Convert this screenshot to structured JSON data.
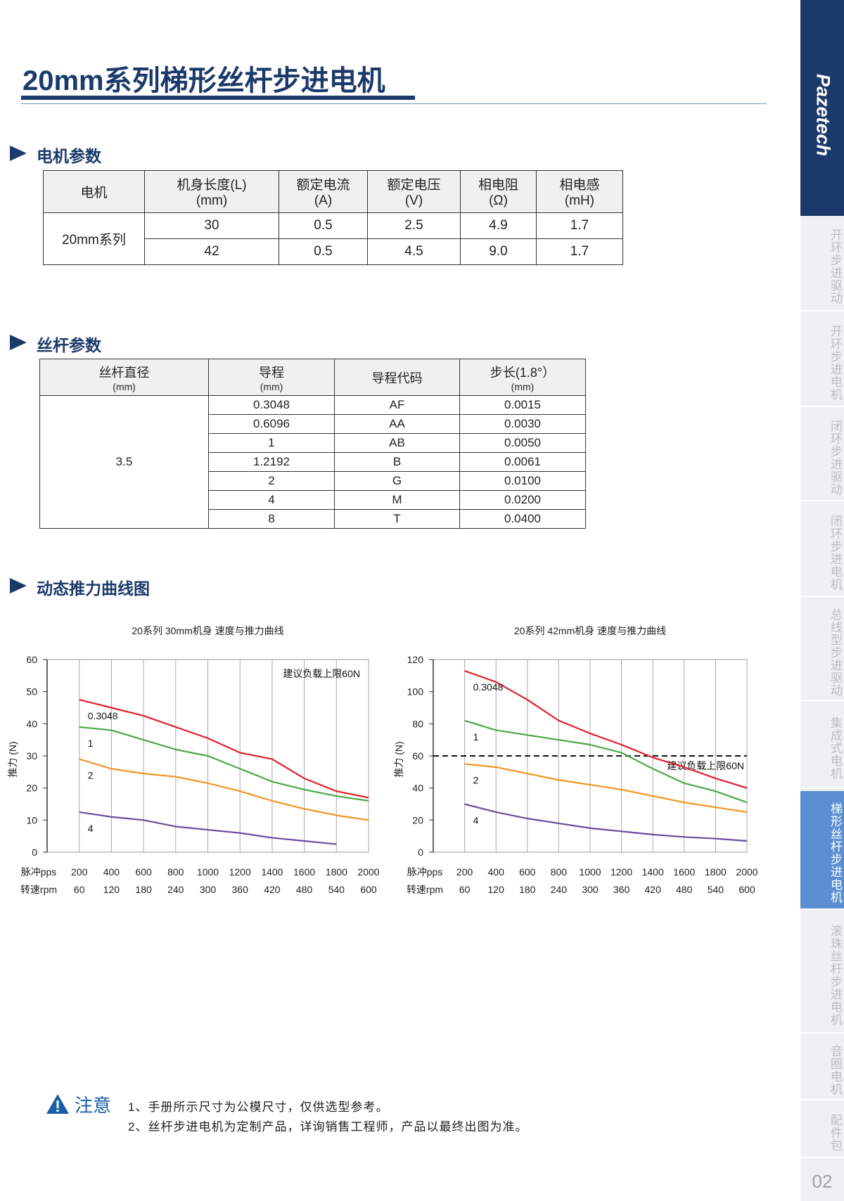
{
  "header": {
    "title": "20mm系列梯形丝杆步进电机"
  },
  "sidebar": {
    "brand": "Pazetech",
    "items": [
      {
        "label": "开环步进驱动"
      },
      {
        "label": "开环步进电机"
      },
      {
        "label": "闭环步进驱动"
      },
      {
        "label": "闭环步进电机"
      },
      {
        "label": "总线型步进驱动"
      },
      {
        "label": "集成式电机"
      },
      {
        "label": "梯形丝杆步进电机",
        "active": true
      },
      {
        "label": "滚珠丝杆步进电机"
      },
      {
        "label": "音圈电机"
      },
      {
        "label": "配件包"
      }
    ]
  },
  "page_number": "02",
  "sections": [
    "电机参数",
    "丝杆参数",
    "动态推力曲线图"
  ],
  "motor_table": {
    "headers": [
      {
        "text": "电机"
      },
      {
        "text": "机身长度(L)",
        "unit": "(mm)"
      },
      {
        "text": "额定电流",
        "unit": "(A)"
      },
      {
        "text": "额定电压",
        "unit": "(V)"
      },
      {
        "text": "相电阻",
        "unit": "(Ω)"
      },
      {
        "text": "相电感",
        "unit": "(mH)"
      }
    ],
    "group": "20mm系列",
    "rows": [
      [
        "30",
        "0.5",
        "2.5",
        "4.9",
        "1.7"
      ],
      [
        "42",
        "0.5",
        "4.5",
        "9.0",
        "1.7"
      ]
    ]
  },
  "screw_table": {
    "headers": [
      {
        "text": "丝杆直径",
        "unit": "(mm)"
      },
      {
        "text": "导程",
        "unit": "(mm)"
      },
      {
        "text": "导程代码"
      },
      {
        "text": "步长(1.8°）",
        "unit": "(mm)"
      }
    ],
    "group": "3.5",
    "rows": [
      [
        "0.3048",
        "AF",
        "0.0015"
      ],
      [
        "0.6096",
        "AA",
        "0.0030"
      ],
      [
        "1",
        "AB",
        "0.0050"
      ],
      [
        "1.2192",
        "B",
        "0.0061"
      ],
      [
        "2",
        "G",
        "0.0100"
      ],
      [
        "4",
        "M",
        "0.0200"
      ],
      [
        "8",
        "T",
        "0.0400"
      ]
    ]
  },
  "chart_data": [
    {
      "type": "line",
      "title": "20系列 30mm机身 速度与推力曲线",
      "y_label": "推力 (N)",
      "x_label": "脉冲pps",
      "x2_label": "转速rpm",
      "annotation": "建议负载上限60N",
      "x": [
        200,
        400,
        600,
        800,
        1000,
        1200,
        1400,
        1600,
        1800,
        2000
      ],
      "xlim": [
        0,
        2000
      ],
      "xticks": [
        200,
        400,
        600,
        800,
        1000,
        1200,
        1400,
        1600,
        1800,
        2000
      ],
      "x2_ticks": [
        60,
        120,
        180,
        240,
        300,
        360,
        420,
        480,
        540,
        600
      ],
      "ylim": [
        0,
        60
      ],
      "yticks": [
        0,
        10,
        20,
        30,
        40,
        50,
        60
      ],
      "grid": true,
      "series": [
        {
          "name": "0.3048",
          "color": "#e0202a",
          "values": [
            47.5,
            45,
            42.5,
            39,
            35.5,
            31,
            29,
            23,
            19,
            17
          ]
        },
        {
          "name": "1",
          "color": "#4aa843",
          "values": [
            39,
            38,
            35,
            32,
            30,
            26,
            22,
            19.5,
            17.5,
            16
          ]
        },
        {
          "name": "2",
          "color": "#f29422",
          "values": [
            29,
            26,
            24.5,
            23.5,
            21.5,
            19,
            16,
            13.5,
            11.5,
            10
          ]
        },
        {
          "name": "4",
          "color": "#6a4c9c",
          "values": [
            12.5,
            11,
            10,
            8,
            7,
            6,
            4.5,
            3.5,
            2.5,
            null
          ]
        }
      ]
    },
    {
      "type": "line",
      "title": "20系列 42mm机身 速度与推力曲线",
      "y_label": "推力 (N)",
      "x_label": "脉冲pps",
      "x2_label": "转速rpm",
      "annotation": "建议负载上限60N",
      "threshold": 60,
      "x": [
        200,
        400,
        600,
        800,
        1000,
        1200,
        1400,
        1600,
        1800,
        2000
      ],
      "xlim": [
        0,
        2000
      ],
      "xticks": [
        200,
        400,
        600,
        800,
        1000,
        1200,
        1400,
        1600,
        1800,
        2000
      ],
      "x2_ticks": [
        60,
        120,
        180,
        240,
        300,
        360,
        420,
        480,
        540,
        600
      ],
      "ylim": [
        0,
        120
      ],
      "yticks": [
        0,
        20,
        40,
        60,
        80,
        100,
        120
      ],
      "grid": true,
      "series": [
        {
          "name": "0.3048",
          "color": "#e0202a",
          "values": [
            113,
            106,
            95,
            82,
            74,
            67,
            59,
            53,
            46,
            40
          ]
        },
        {
          "name": "1",
          "color": "#4aa843",
          "values": [
            82,
            76,
            73,
            70,
            67,
            62,
            52,
            43,
            38,
            31
          ]
        },
        {
          "name": "2",
          "color": "#f29422",
          "values": [
            55,
            53,
            49,
            45,
            42,
            39,
            35,
            31,
            28,
            25
          ]
        },
        {
          "name": "4",
          "color": "#6a4c9c",
          "values": [
            30,
            25,
            21,
            18,
            15,
            13,
            11,
            9.5,
            8.5,
            7
          ]
        }
      ]
    }
  ],
  "notes": {
    "label": "注意",
    "items": [
      "1、手册所示尺寸为公模尺寸，仅供选型参考。",
      "2、丝杆步进电机为定制产品，详询销售工程师，产品以最终出图为准。"
    ]
  }
}
